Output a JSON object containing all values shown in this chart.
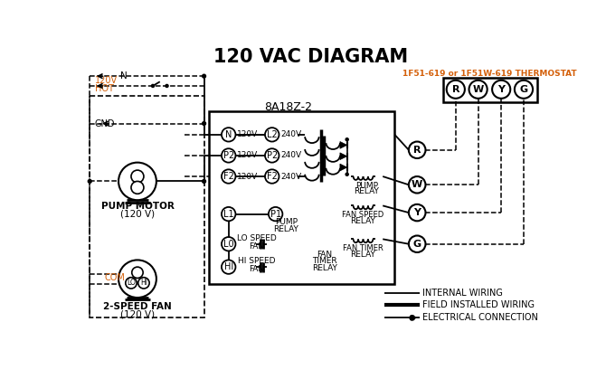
{
  "title": "120 VAC DIAGRAM",
  "bg_color": "#ffffff",
  "text_color": "#000000",
  "orange_color": "#d4600a",
  "thermostat_label": "1F51-619 or 1F51W-619 THERMOSTAT",
  "box8a_label": "8A18Z-2",
  "fig_w": 6.7,
  "fig_h": 4.19,
  "dpi": 100
}
